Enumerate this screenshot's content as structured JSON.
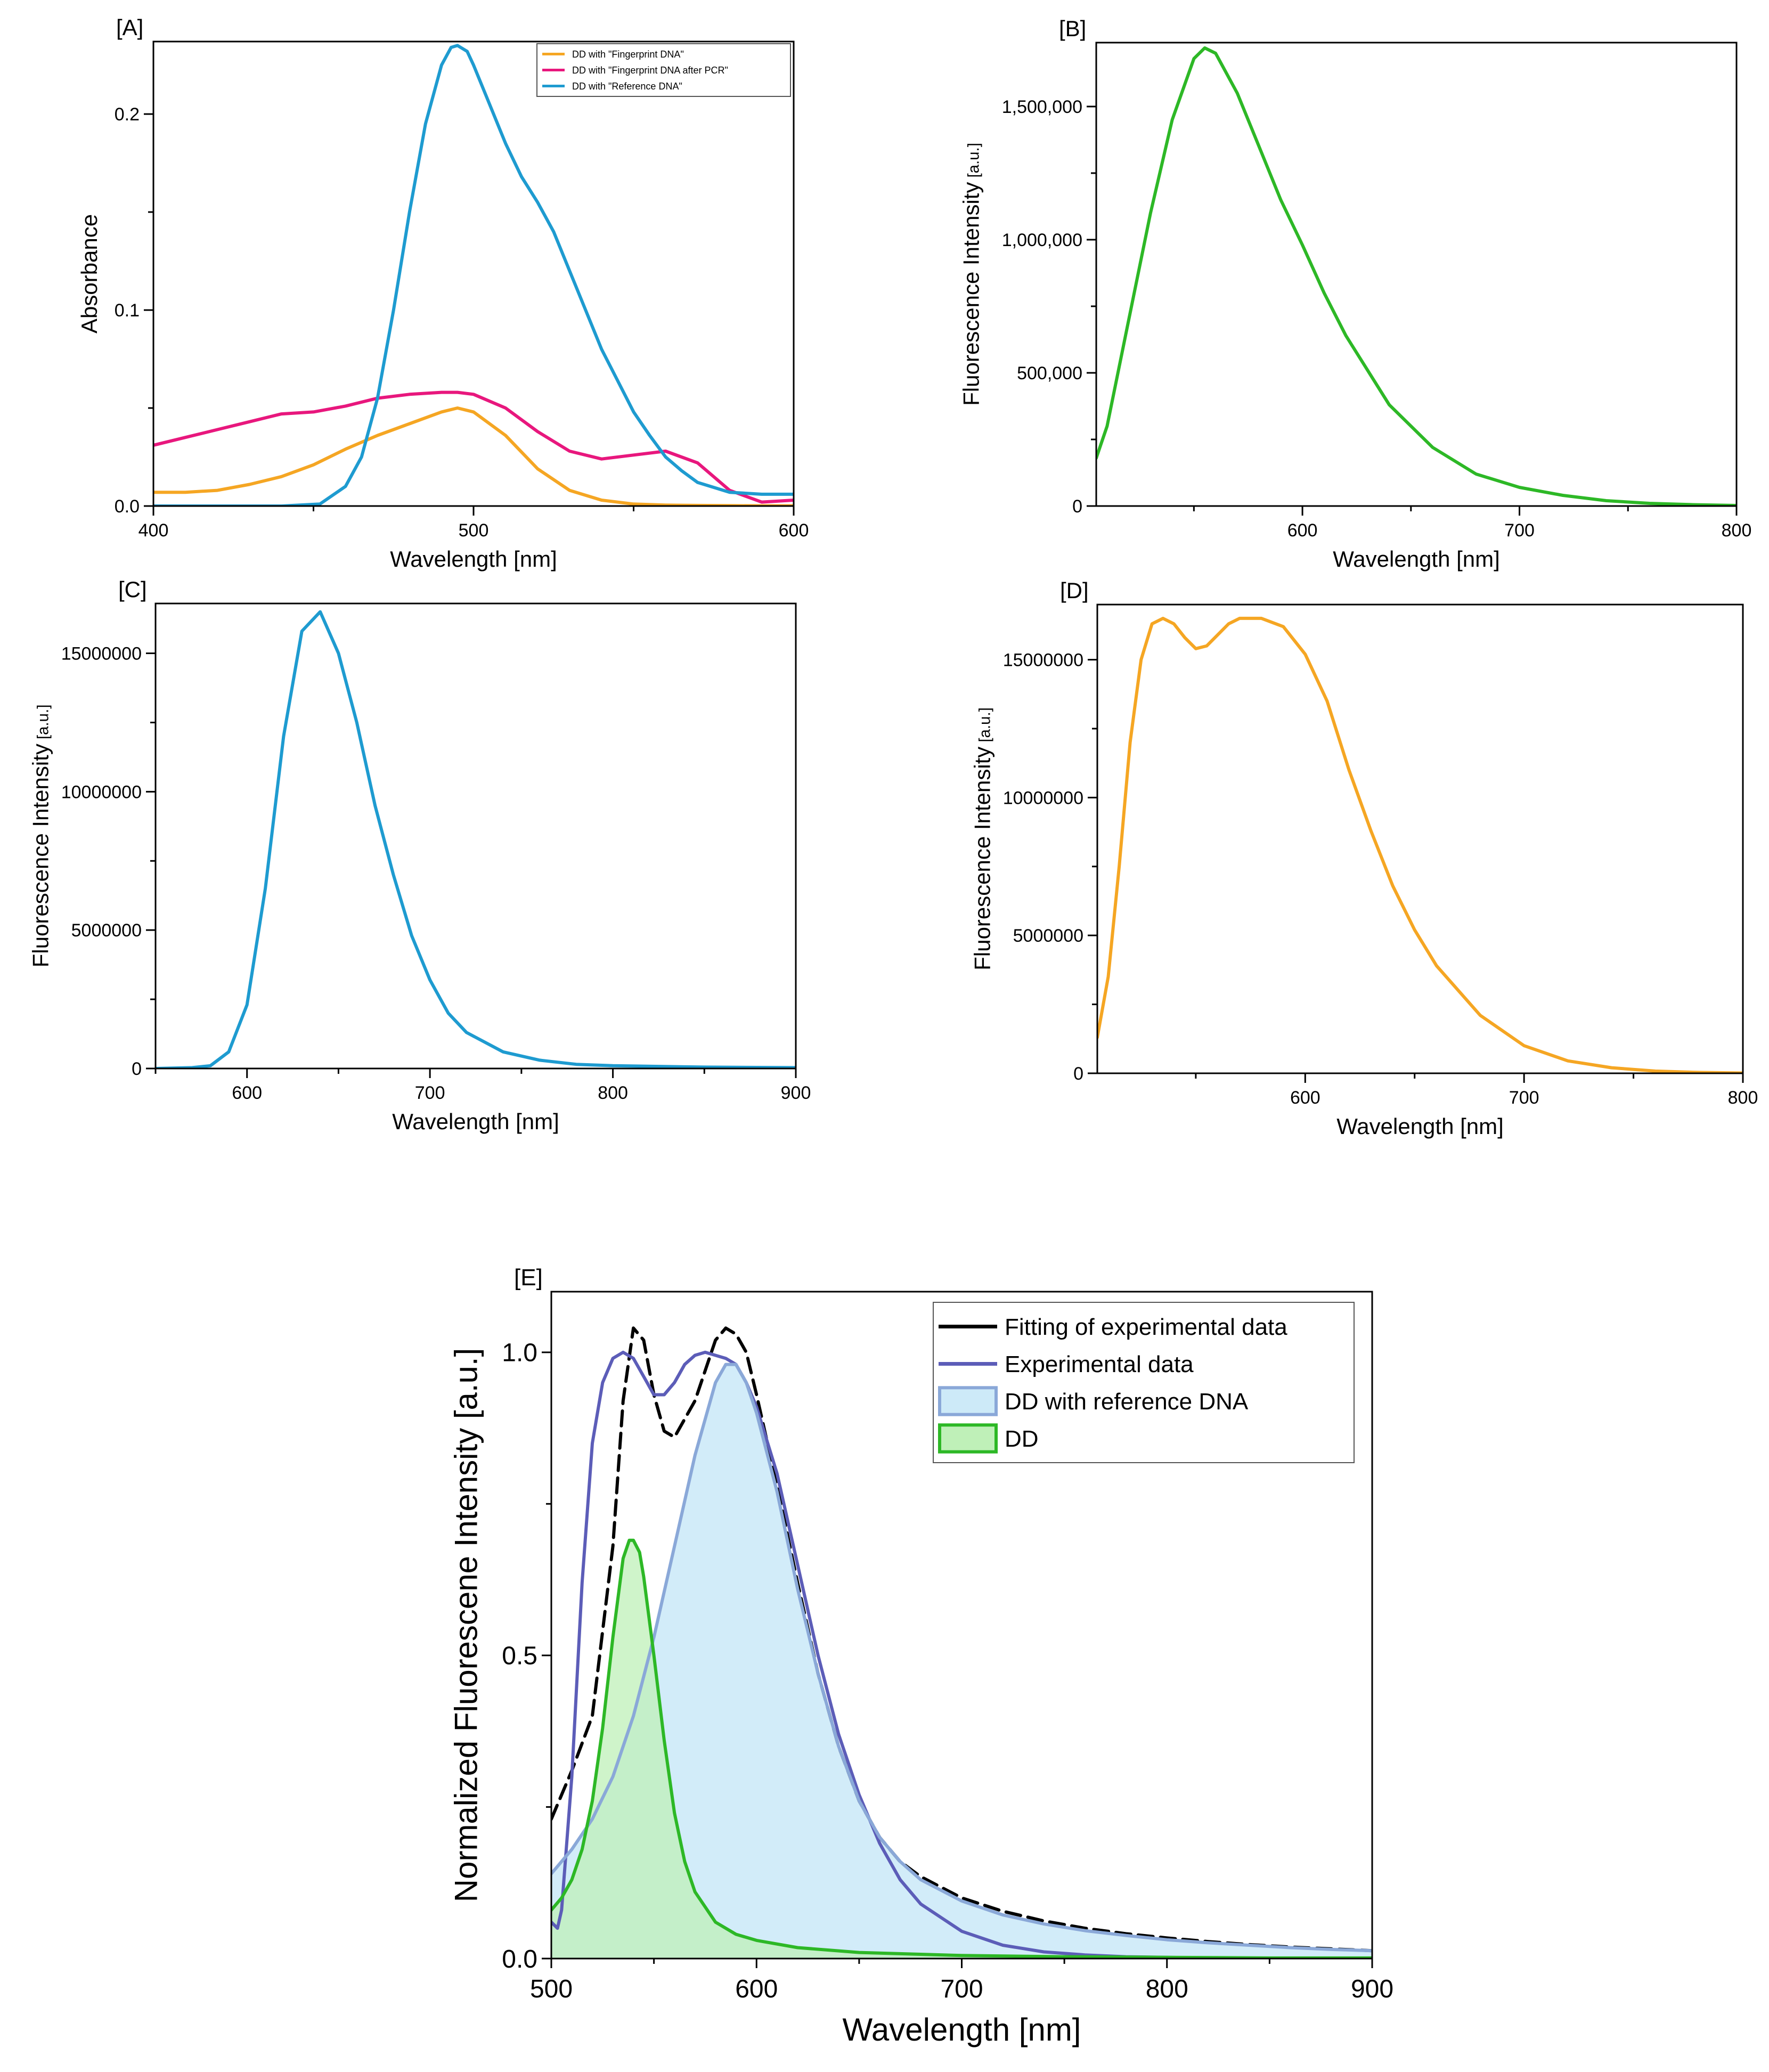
{
  "chart_data": [
    {
      "panel": "[A]",
      "type": "line",
      "xlabel": "Wavelength [nm]",
      "ylabel": "Absorbance",
      "xlim": [
        400,
        600
      ],
      "ylim": [
        0,
        0.237
      ],
      "xticks": [
        "400",
        "500",
        "600"
      ],
      "yticks": [
        "0.0",
        "0.1",
        "0.2"
      ],
      "legend_position": "top-right",
      "series": [
        {
          "name": "DD with \"Fingerprint DNA\"",
          "color": "#F5A623",
          "x": [
            400,
            410,
            420,
            430,
            440,
            450,
            460,
            470,
            480,
            490,
            495,
            500,
            510,
            520,
            530,
            540,
            550,
            560,
            570,
            580,
            590,
            600
          ],
          "y": [
            0.007,
            0.007,
            0.008,
            0.011,
            0.015,
            0.021,
            0.029,
            0.036,
            0.042,
            0.048,
            0.05,
            0.048,
            0.036,
            0.019,
            0.008,
            0.003,
            0.001,
            0.0005,
            0.0003,
            0.0002,
            0.0001,
            0.0001
          ]
        },
        {
          "name": "DD with \"Fingerprint DNA after PCR\"",
          "color": "#E8177D",
          "x": [
            400,
            410,
            420,
            430,
            440,
            450,
            460,
            470,
            480,
            490,
            495,
            500,
            510,
            520,
            530,
            540,
            550,
            560,
            570,
            580,
            590,
            600
          ],
          "y": [
            0.031,
            0.035,
            0.039,
            0.043,
            0.047,
            0.048,
            0.051,
            0.055,
            0.057,
            0.058,
            0.058,
            0.057,
            0.05,
            0.038,
            0.028,
            0.024,
            0.026,
            0.028,
            0.022,
            0.008,
            0.002,
            0.003
          ]
        },
        {
          "name": "DD with \"Reference DNA\"",
          "color": "#1E9BD0",
          "x": [
            400,
            440,
            452,
            460,
            465,
            470,
            475,
            480,
            485,
            490,
            493,
            495,
            498,
            500,
            505,
            510,
            515,
            520,
            525,
            530,
            540,
            550,
            555,
            560,
            565,
            570,
            580,
            590,
            600
          ],
          "y": [
            0,
            0,
            0.001,
            0.01,
            0.025,
            0.055,
            0.1,
            0.15,
            0.195,
            0.225,
            0.234,
            0.235,
            0.232,
            0.225,
            0.205,
            0.185,
            0.168,
            0.155,
            0.14,
            0.12,
            0.08,
            0.048,
            0.036,
            0.025,
            0.018,
            0.012,
            0.007,
            0.006,
            0.006
          ]
        }
      ]
    },
    {
      "panel": "[B]",
      "type": "line",
      "xlabel": "Wavelength [nm]",
      "ylabel": "Fluorescence Intensity",
      "ylabel_unit": "[a.u.]",
      "xlim": [
        505,
        800
      ],
      "ylim": [
        0,
        1740000
      ],
      "xticks": [
        "600",
        "700",
        "800"
      ],
      "yticks": [
        "0",
        "500,000",
        "1,000,000",
        "1,500,000"
      ],
      "series": [
        {
          "name": "",
          "color": "#2DB826",
          "x": [
            505,
            510,
            520,
            530,
            540,
            550,
            555,
            560,
            570,
            580,
            590,
            600,
            610,
            620,
            640,
            660,
            680,
            700,
            720,
            740,
            760,
            780,
            800
          ],
          "y": [
            180000,
            300000,
            700000,
            1100000,
            1450000,
            1680000,
            1720000,
            1700000,
            1550000,
            1350000,
            1150000,
            980000,
            800000,
            640000,
            380000,
            220000,
            120000,
            70000,
            40000,
            20000,
            10000,
            5000,
            2000
          ]
        }
      ]
    },
    {
      "panel": "[C]",
      "type": "line",
      "xlabel": "Wavelength [nm]",
      "ylabel": "Fluorescence Intensity",
      "ylabel_unit": "[a.u.]",
      "xlim": [
        550,
        900
      ],
      "ylim": [
        0,
        16800000
      ],
      "xticks": [
        "600",
        "700",
        "800",
        "900"
      ],
      "yticks": [
        "0",
        "5000000",
        "10000000",
        "15000000"
      ],
      "series": [
        {
          "name": "",
          "color": "#1E9BD0",
          "x": [
            550,
            570,
            580,
            590,
            600,
            610,
            620,
            630,
            640,
            650,
            660,
            670,
            680,
            690,
            700,
            710,
            720,
            740,
            760,
            780,
            800,
            850,
            900
          ],
          "y": [
            0,
            30000,
            100000,
            600000,
            2300000,
            6500000,
            12000000,
            15800000,
            16500000,
            15000000,
            12500000,
            9500000,
            7000000,
            4800000,
            3200000,
            2000000,
            1300000,
            600000,
            300000,
            150000,
            100000,
            50000,
            30000
          ]
        }
      ]
    },
    {
      "panel": "[D]",
      "type": "line",
      "xlabel": "Wavelength [nm]",
      "ylabel": "Fluorescence Intensity",
      "ylabel_unit": "[a.u.]",
      "xlim": [
        505,
        800
      ],
      "ylim": [
        0,
        17000000
      ],
      "xticks": [
        "600",
        "700",
        "800"
      ],
      "yticks": [
        "0",
        "5000000",
        "10000000",
        "15000000"
      ],
      "series": [
        {
          "name": "",
          "color": "#F5A623",
          "x": [
            505,
            510,
            515,
            520,
            525,
            530,
            535,
            540,
            545,
            550,
            555,
            560,
            565,
            570,
            575,
            580,
            590,
            600,
            610,
            620,
            630,
            640,
            650,
            660,
            680,
            700,
            720,
            740,
            760,
            780,
            800
          ],
          "y": [
            1300000,
            3500000,
            7500000,
            12000000,
            15000000,
            16300000,
            16500000,
            16300000,
            15800000,
            15400000,
            15500000,
            15900000,
            16300000,
            16500000,
            16500000,
            16500000,
            16200000,
            15200000,
            13500000,
            11000000,
            8800000,
            6800000,
            5200000,
            3900000,
            2100000,
            1000000,
            450000,
            200000,
            80000,
            30000,
            10000
          ]
        }
      ]
    },
    {
      "panel": "[E]",
      "type": "line",
      "xlabel": "Wavelength [nm]",
      "ylabel": "Normalized Fluorescene Intensity [a.u.]",
      "xlim": [
        500,
        900
      ],
      "ylim": [
        0,
        1.1
      ],
      "xticks": [
        "500",
        "600",
        "700",
        "800",
        "900"
      ],
      "yticks": [
        "0.0",
        "0.5",
        "1.0"
      ],
      "legend_position": "top-right",
      "series": [
        {
          "name": "Fitting of experimental data",
          "color": "#000000",
          "dashed": true,
          "x": [
            500,
            510,
            520,
            530,
            535,
            540,
            545,
            550,
            555,
            560,
            570,
            580,
            585,
            590,
            595,
            600,
            610,
            620,
            630,
            640,
            650,
            660,
            670,
            680,
            700,
            720,
            740,
            760,
            780,
            800,
            820,
            840,
            860,
            880,
            900
          ],
          "y": [
            0.23,
            0.31,
            0.4,
            0.68,
            0.92,
            1.04,
            1.02,
            0.93,
            0.87,
            0.86,
            0.92,
            1.02,
            1.04,
            1.03,
            1.0,
            0.93,
            0.78,
            0.62,
            0.47,
            0.35,
            0.26,
            0.2,
            0.16,
            0.135,
            0.1,
            0.078,
            0.062,
            0.05,
            0.041,
            0.034,
            0.028,
            0.023,
            0.019,
            0.016,
            0.013
          ]
        },
        {
          "name": "Experimental data",
          "color": "#5C5DB8",
          "x": [
            500,
            503,
            505,
            510,
            515,
            520,
            525,
            530,
            535,
            540,
            545,
            550,
            555,
            560,
            565,
            570,
            575,
            580,
            585,
            590,
            595,
            600,
            610,
            620,
            630,
            640,
            650,
            660,
            670,
            680,
            700,
            720,
            740,
            760,
            780,
            800,
            820,
            840,
            860,
            880,
            900
          ],
          "y": [
            0.06,
            0.05,
            0.08,
            0.3,
            0.62,
            0.85,
            0.95,
            0.99,
            1.0,
            0.99,
            0.96,
            0.93,
            0.93,
            0.95,
            0.98,
            0.995,
            1.0,
            0.995,
            0.99,
            0.98,
            0.95,
            0.91,
            0.8,
            0.65,
            0.5,
            0.37,
            0.27,
            0.19,
            0.13,
            0.09,
            0.045,
            0.022,
            0.011,
            0.006,
            0.003,
            0.002,
            0.001,
            0.0005,
            0.0003,
            0.0002,
            0.0001
          ]
        },
        {
          "name": "DD with reference DNA",
          "color": "#8AA8D8",
          "fill": "#CDEAF8",
          "x": [
            500,
            510,
            520,
            530,
            540,
            550,
            560,
            570,
            580,
            585,
            590,
            595,
            600,
            610,
            620,
            630,
            640,
            650,
            660,
            670,
            680,
            700,
            720,
            740,
            760,
            780,
            800,
            820,
            840,
            860,
            880,
            900
          ],
          "y": [
            0.14,
            0.18,
            0.23,
            0.3,
            0.4,
            0.53,
            0.68,
            0.83,
            0.95,
            0.98,
            0.98,
            0.95,
            0.9,
            0.77,
            0.61,
            0.47,
            0.35,
            0.26,
            0.2,
            0.16,
            0.13,
            0.095,
            0.072,
            0.057,
            0.046,
            0.038,
            0.031,
            0.026,
            0.022,
            0.018,
            0.015,
            0.013
          ]
        },
        {
          "name": "DD",
          "color": "#2DB826",
          "fill": "#BFF0B8",
          "x": [
            500,
            505,
            510,
            515,
            520,
            525,
            530,
            535,
            538,
            540,
            543,
            545,
            550,
            555,
            560,
            565,
            570,
            580,
            590,
            600,
            620,
            650,
            700,
            750,
            800,
            850,
            900
          ],
          "y": [
            0.08,
            0.1,
            0.13,
            0.18,
            0.26,
            0.38,
            0.53,
            0.66,
            0.69,
            0.69,
            0.67,
            0.63,
            0.5,
            0.36,
            0.24,
            0.16,
            0.11,
            0.06,
            0.04,
            0.03,
            0.018,
            0.01,
            0.005,
            0.003,
            0.002,
            0.001,
            0.001
          ]
        }
      ]
    }
  ]
}
